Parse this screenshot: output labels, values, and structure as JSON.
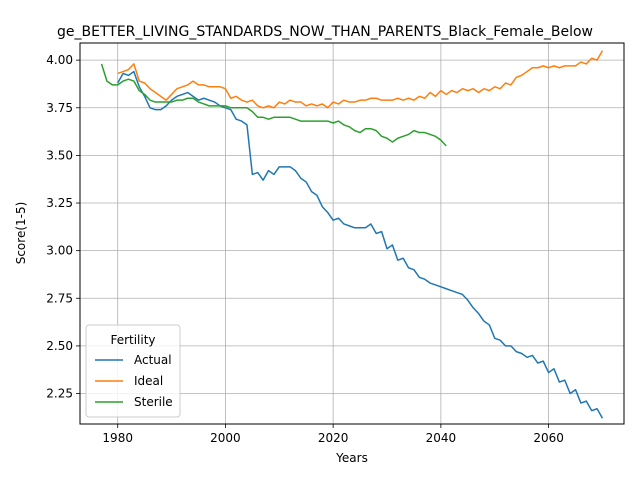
{
  "chart_data": {
    "type": "line",
    "title": "ge_BETTER_LIVING_STANDARDS_NOW_THAN_PARENTS_Black_Female_Below",
    "xlabel": "Years",
    "ylabel": "Score(1-5)",
    "xlim": [
      1973,
      2074
    ],
    "ylim": [
      2.09,
      4.09
    ],
    "xticks": [
      1980,
      2000,
      2020,
      2040,
      2060
    ],
    "yticks": [
      2.25,
      2.5,
      2.75,
      3.0,
      3.25,
      3.5,
      3.75,
      4.0
    ],
    "ytick_labels": [
      "2.25",
      "2.50",
      "2.75",
      "3.00",
      "3.25",
      "3.50",
      "3.75",
      "4.00"
    ],
    "grid": true,
    "legend": {
      "title": "Fertility",
      "placement": "lower-left"
    },
    "series": [
      {
        "name": "Actual",
        "color": "#1f77b4",
        "x": [
          1980,
          1981,
          1982,
          1983,
          1984,
          1985,
          1986,
          1987,
          1988,
          1989,
          1990,
          1991,
          1992,
          1993,
          1994,
          1995,
          1996,
          1997,
          1998,
          1999,
          2000,
          2001,
          2002,
          2003,
          2004,
          2005,
          2006,
          2007,
          2008,
          2009,
          2010,
          2011,
          2012,
          2013,
          2014,
          2015,
          2016,
          2017,
          2018,
          2019,
          2020,
          2021,
          2022,
          2023,
          2024,
          2025,
          2026,
          2027,
          2028,
          2029,
          2030,
          2031,
          2032,
          2033,
          2034,
          2035,
          2036,
          2037,
          2038,
          2039,
          2040,
          2041,
          2042,
          2043,
          2044,
          2045,
          2046,
          2047,
          2048,
          2049,
          2050,
          2051,
          2052,
          2053,
          2054,
          2055,
          2056,
          2057,
          2058,
          2059,
          2060,
          2061,
          2062,
          2063,
          2064,
          2065,
          2066,
          2067,
          2068,
          2069,
          2070
        ],
        "values": [
          3.88,
          3.93,
          3.92,
          3.94,
          3.86,
          3.81,
          3.75,
          3.74,
          3.74,
          3.76,
          3.79,
          3.81,
          3.82,
          3.83,
          3.81,
          3.79,
          3.8,
          3.79,
          3.78,
          3.76,
          3.75,
          3.74,
          3.69,
          3.68,
          3.66,
          3.4,
          3.41,
          3.37,
          3.42,
          3.4,
          3.44,
          3.44,
          3.44,
          3.42,
          3.38,
          3.36,
          3.31,
          3.29,
          3.23,
          3.2,
          3.16,
          3.17,
          3.14,
          3.13,
          3.12,
          3.12,
          3.12,
          3.14,
          3.09,
          3.1,
          3.01,
          3.03,
          2.95,
          2.96,
          2.91,
          2.9,
          2.86,
          2.85,
          2.83,
          2.82,
          2.81,
          2.8,
          2.79,
          2.78,
          2.77,
          2.74,
          2.7,
          2.67,
          2.63,
          2.61,
          2.54,
          2.53,
          2.5,
          2.5,
          2.47,
          2.46,
          2.44,
          2.45,
          2.41,
          2.42,
          2.36,
          2.38,
          2.31,
          2.32,
          2.25,
          2.27,
          2.2,
          2.21,
          2.16,
          2.17,
          2.12
        ]
      },
      {
        "name": "Ideal",
        "color": "#ff7f0e",
        "x": [
          1980,
          1981,
          1982,
          1983,
          1984,
          1985,
          1986,
          1987,
          1988,
          1989,
          1990,
          1991,
          1992,
          1993,
          1994,
          1995,
          1996,
          1997,
          1998,
          1999,
          2000,
          2001,
          2002,
          2003,
          2004,
          2005,
          2006,
          2007,
          2008,
          2009,
          2010,
          2011,
          2012,
          2013,
          2014,
          2015,
          2016,
          2017,
          2018,
          2019,
          2020,
          2021,
          2022,
          2023,
          2024,
          2025,
          2026,
          2027,
          2028,
          2029,
          2030,
          2031,
          2032,
          2033,
          2034,
          2035,
          2036,
          2037,
          2038,
          2039,
          2040,
          2041,
          2042,
          2043,
          2044,
          2045,
          2046,
          2047,
          2048,
          2049,
          2050,
          2051,
          2052,
          2053,
          2054,
          2055,
          2056,
          2057,
          2058,
          2059,
          2060,
          2061,
          2062,
          2063,
          2064,
          2065,
          2066,
          2067,
          2068,
          2069,
          2070
        ],
        "values": [
          3.93,
          3.94,
          3.95,
          3.98,
          3.89,
          3.88,
          3.85,
          3.83,
          3.81,
          3.79,
          3.82,
          3.85,
          3.86,
          3.87,
          3.89,
          3.87,
          3.87,
          3.86,
          3.86,
          3.86,
          3.85,
          3.8,
          3.81,
          3.79,
          3.78,
          3.79,
          3.76,
          3.75,
          3.76,
          3.75,
          3.78,
          3.77,
          3.79,
          3.78,
          3.78,
          3.76,
          3.77,
          3.76,
          3.77,
          3.75,
          3.78,
          3.77,
          3.79,
          3.78,
          3.78,
          3.79,
          3.79,
          3.8,
          3.8,
          3.79,
          3.79,
          3.79,
          3.8,
          3.79,
          3.8,
          3.79,
          3.81,
          3.8,
          3.83,
          3.81,
          3.84,
          3.82,
          3.84,
          3.83,
          3.85,
          3.84,
          3.85,
          3.83,
          3.85,
          3.84,
          3.86,
          3.85,
          3.88,
          3.87,
          3.91,
          3.92,
          3.94,
          3.96,
          3.96,
          3.97,
          3.96,
          3.97,
          3.96,
          3.97,
          3.97,
          3.97,
          3.99,
          3.98,
          4.01,
          4.0,
          4.05
        ]
      },
      {
        "name": "Sterile",
        "color": "#2ca02c",
        "x": [
          1977,
          1978,
          1979,
          1980,
          1981,
          1982,
          1983,
          1984,
          1985,
          1986,
          1987,
          1988,
          1989,
          1990,
          1991,
          1992,
          1993,
          1994,
          1995,
          1996,
          1997,
          1998,
          1999,
          2000,
          2001,
          2002,
          2003,
          2004,
          2005,
          2006,
          2007,
          2008,
          2009,
          2010,
          2011,
          2012,
          2013,
          2014,
          2015,
          2016,
          2017,
          2018,
          2019,
          2020,
          2021,
          2022,
          2023,
          2024,
          2025,
          2026,
          2027,
          2028,
          2029,
          2030,
          2031,
          2032,
          2033,
          2034,
          2035,
          2036,
          2037,
          2038,
          2039,
          2040,
          2041
        ],
        "values": [
          3.98,
          3.89,
          3.87,
          3.87,
          3.89,
          3.9,
          3.89,
          3.84,
          3.82,
          3.79,
          3.78,
          3.78,
          3.78,
          3.78,
          3.79,
          3.79,
          3.8,
          3.8,
          3.78,
          3.77,
          3.76,
          3.76,
          3.76,
          3.76,
          3.75,
          3.75,
          3.75,
          3.75,
          3.73,
          3.7,
          3.7,
          3.69,
          3.7,
          3.7,
          3.7,
          3.7,
          3.69,
          3.68,
          3.68,
          3.68,
          3.68,
          3.68,
          3.68,
          3.67,
          3.68,
          3.66,
          3.65,
          3.63,
          3.62,
          3.64,
          3.64,
          3.63,
          3.6,
          3.59,
          3.57,
          3.59,
          3.6,
          3.61,
          3.63,
          3.62,
          3.62,
          3.61,
          3.6,
          3.58,
          3.55
        ]
      }
    ]
  }
}
